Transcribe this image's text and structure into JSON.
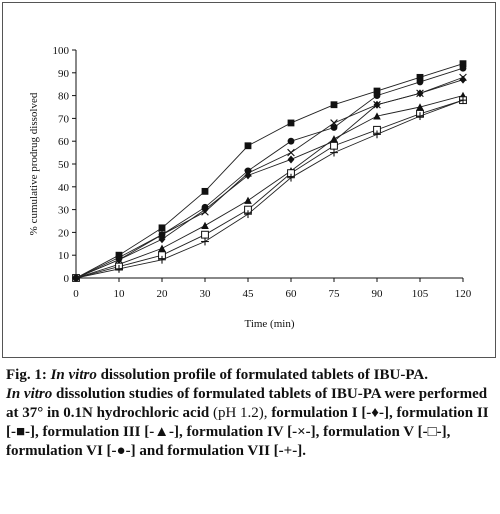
{
  "caption": {
    "fig_label": "Fig. 1:",
    "fig_title_italic": "In vitro",
    "fig_title_rest": "dissolution profile of formulated tablets of IBU-PA.",
    "desc_italic": "In vitro",
    "desc_part1": "dissolution studies of formulated tablets of IBU-PA were performed at 37° in 0.1N hydrochloric acid",
    "desc_paren": "(pH 1.2),",
    "desc_part2": "formulation I [-♦-], formulation II [-■-], formulation III [-▲-], formulation IV [-×-], formulation V [-□-], formulation VI [-●-] and formulation VII [-+-]."
  },
  "chart_data": {
    "type": "line",
    "title": "",
    "xlabel": "Time (min)",
    "ylabel": "% cumulative prodrug dissolved",
    "x": [
      "0",
      "10",
      "20",
      "30",
      "45",
      "60",
      "75",
      "90",
      "105",
      "120"
    ],
    "ylim": [
      0,
      100
    ],
    "yticks": [
      0,
      10,
      20,
      30,
      40,
      50,
      60,
      70,
      80,
      90,
      100
    ],
    "grid": false,
    "series": [
      {
        "marker": "diamond",
        "values": [
          0,
          8,
          17,
          30,
          45,
          52,
          60,
          76,
          81,
          87
        ]
      },
      {
        "marker": "square",
        "values": [
          0,
          10,
          22,
          38,
          58,
          68,
          76,
          82,
          88,
          94
        ]
      },
      {
        "marker": "triangle",
        "values": [
          0,
          6,
          13,
          23,
          34,
          47,
          61,
          71,
          75,
          80
        ]
      },
      {
        "marker": "cross",
        "values": [
          0,
          8,
          19,
          29,
          46,
          55,
          68,
          76,
          81,
          88
        ]
      },
      {
        "marker": "open-square",
        "values": [
          0,
          5,
          10,
          19,
          30,
          46,
          58,
          65,
          72,
          78
        ]
      },
      {
        "marker": "circle",
        "values": [
          0,
          9,
          19,
          31,
          47,
          60,
          66,
          80,
          86,
          92
        ]
      },
      {
        "marker": "plus",
        "values": [
          0,
          4,
          8,
          16,
          28,
          44,
          55,
          63,
          71,
          78
        ]
      }
    ]
  }
}
